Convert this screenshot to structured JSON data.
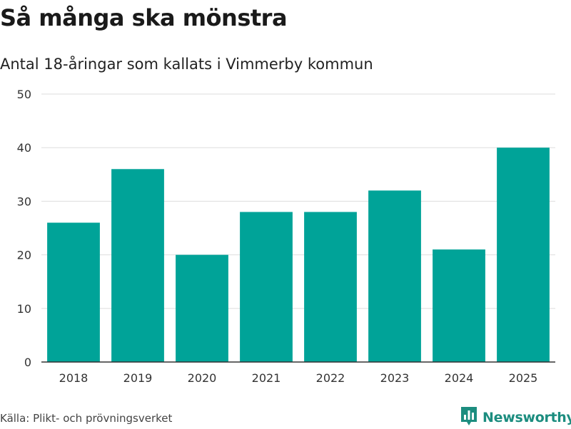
{
  "header": {
    "title": "Så många ska mönstra",
    "subtitle": "Antal 18-åringar som kallats i Vimmerby kommun"
  },
  "footer": {
    "source": "Källa: Plikt- och prövningsverket",
    "brand": "Newsworthy",
    "brand_icon": "bar-chart-icon"
  },
  "colors": {
    "bar": "#00a398",
    "grid": "#dddddd",
    "axis": "#333333",
    "brand": "#1c8d7f"
  },
  "chart_data": {
    "type": "bar",
    "title": "Så många ska mönstra",
    "subtitle": "Antal 18-åringar som kallats i Vimmerby kommun",
    "categories": [
      "2018",
      "2019",
      "2020",
      "2021",
      "2022",
      "2023",
      "2024",
      "2025"
    ],
    "values": [
      26,
      36,
      20,
      28,
      28,
      32,
      21,
      40
    ],
    "yticks": [
      "0",
      "10",
      "20",
      "30",
      "40",
      "50"
    ],
    "ylim": [
      0,
      50
    ],
    "xlabel": "",
    "ylabel": "",
    "grid": true,
    "legend": "none"
  }
}
